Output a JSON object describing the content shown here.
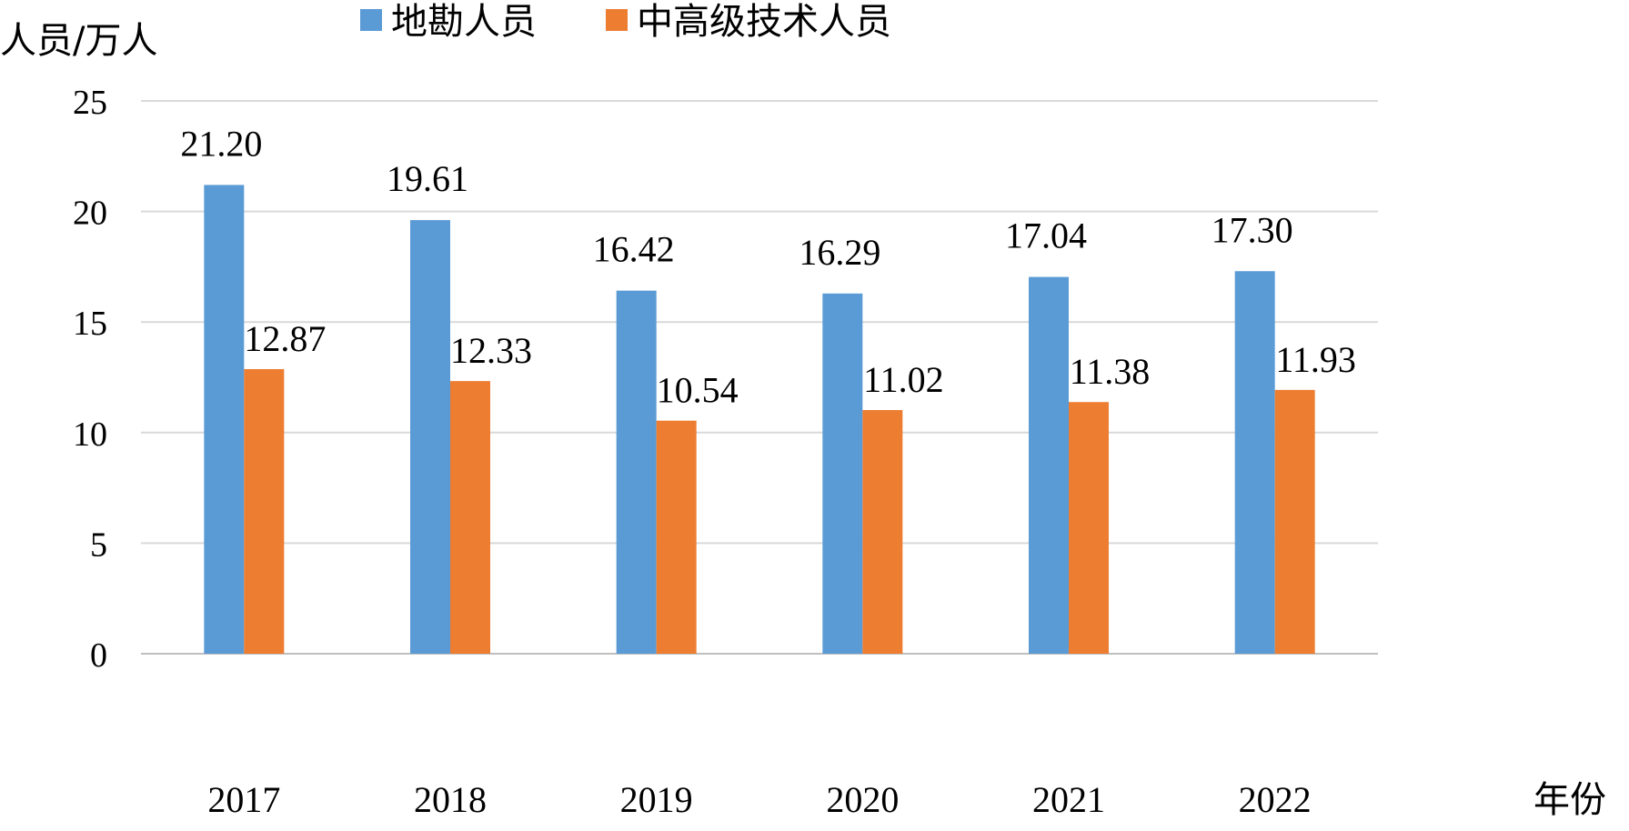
{
  "chart_data": {
    "type": "bar",
    "ylabel": "人员/万人",
    "xlabel": "年份",
    "categories": [
      "2017",
      "2018",
      "2019",
      "2020",
      "2021",
      "2022"
    ],
    "series": [
      {
        "name": "地勘人员",
        "color": "#5b9bd5",
        "values": [
          21.2,
          19.61,
          16.42,
          16.29,
          17.04,
          17.3
        ],
        "labels": [
          "21.20",
          "19.61",
          "16.42",
          "16.29",
          "17.04",
          "17.30"
        ]
      },
      {
        "name": "中高级技术人员",
        "color": "#ed7d31",
        "values": [
          12.87,
          12.33,
          10.54,
          11.02,
          11.38,
          11.93
        ],
        "labels": [
          "12.87",
          "12.33",
          "10.54",
          "11.02",
          "11.38",
          "11.93"
        ]
      }
    ],
    "ylim": [
      0,
      25
    ],
    "yticks": [
      "0",
      "5",
      "10",
      "15",
      "20",
      "25"
    ],
    "grid": true,
    "legend_position": "top"
  }
}
